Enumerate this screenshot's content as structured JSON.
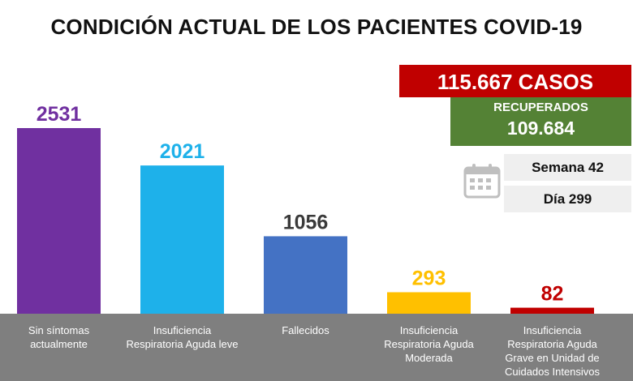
{
  "title": "CONDICIÓN ACTUAL DE LOS PACIENTES COVID-19",
  "summary": {
    "cases_label": "115.667 CASOS",
    "recovered_label": "RECUPERADOS",
    "recovered_value": "109.684",
    "week_label": "Semana 42",
    "day_label": "Día 299"
  },
  "colors": {
    "cases_bg": "#c00000",
    "recovered_bg": "#548235",
    "axis_band": "#7f7f7f"
  },
  "icons": {
    "calendar": "calendar-icon"
  },
  "chart_data": {
    "type": "bar",
    "title": "CONDICIÓN ACTUAL DE LOS PACIENTES COVID-19",
    "xlabel": "",
    "ylabel": "",
    "ylim": [
      0,
      2531
    ],
    "grid": false,
    "legend": "none",
    "categories": [
      [
        "Sin síntomas",
        "actualmente"
      ],
      [
        "Insuficiencia",
        "Respiratoria Aguda leve"
      ],
      [
        "Fallecidos"
      ],
      [
        "Insuficiencia",
        "Respiratoria Aguda",
        "Moderada"
      ],
      [
        "Insuficiencia",
        "Respiratoria Aguda",
        "Grave en Unidad de",
        "Cuidados Intensivos"
      ]
    ],
    "values": [
      2531,
      2021,
      1056,
      293,
      82
    ],
    "bar_colors": [
      "#7030a0",
      "#1eb1ea",
      "#4472c4",
      "#ffc000",
      "#c00000"
    ],
    "label_colors": [
      "#7030a0",
      "#1eb1ea",
      "#3a3a3a",
      "#ffc000",
      "#c00000"
    ]
  }
}
